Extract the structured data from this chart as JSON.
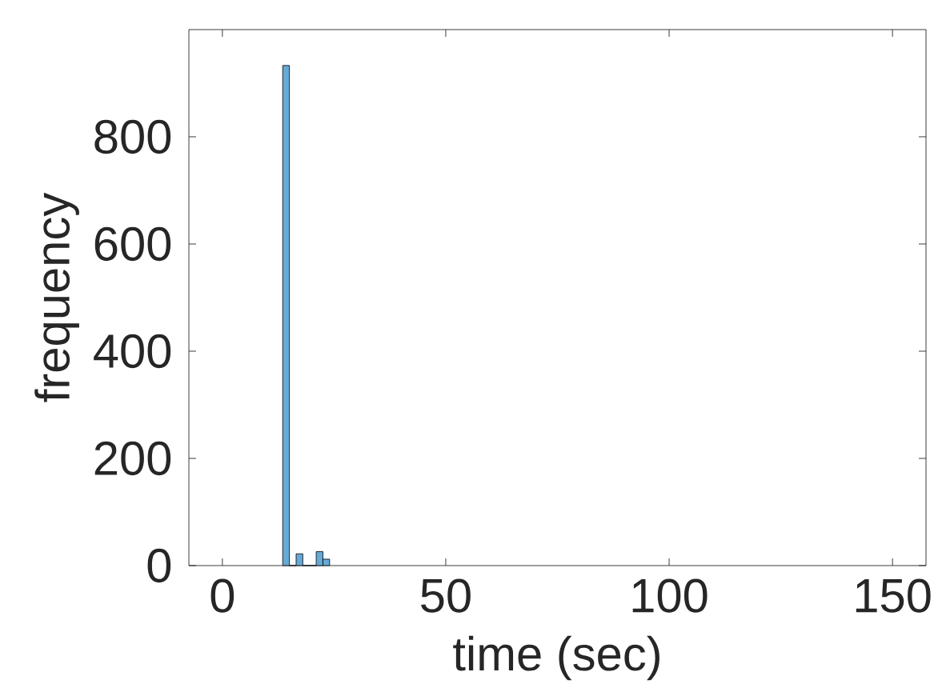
{
  "chart_data": {
    "type": "histogram",
    "xlabel": "time (sec)",
    "ylabel": "frequency",
    "bins": [
      13.5,
      15,
      16.5,
      18,
      19.5,
      21,
      22.5,
      24
    ],
    "values": [
      933,
      0,
      22,
      0,
      0,
      26,
      12
    ],
    "color": "#66aad7",
    "xlim": [
      -7.5,
      157.5
    ],
    "ylim": [
      0,
      1000
    ],
    "xticks": [
      0,
      50,
      100,
      150
    ],
    "yticks": [
      0,
      200,
      400,
      600,
      800
    ]
  }
}
